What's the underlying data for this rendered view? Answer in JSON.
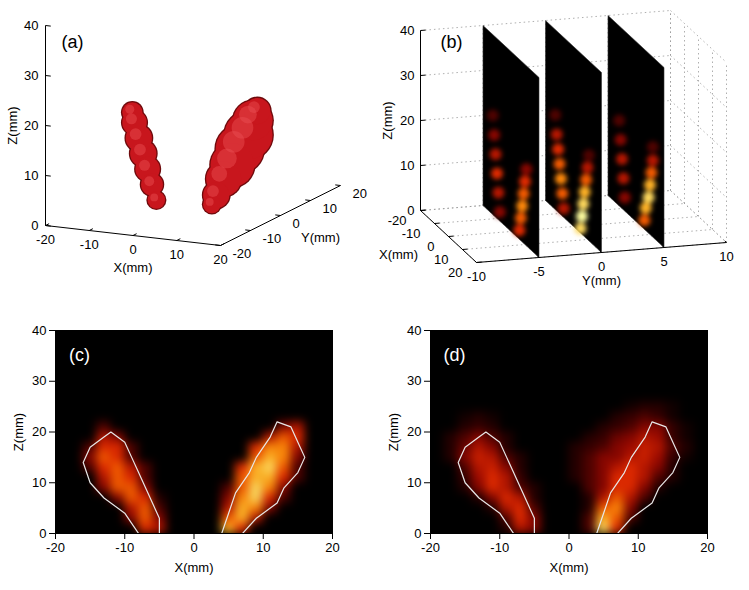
{
  "chart_data": [
    {
      "type": "isosurface3d",
      "title": "(a)",
      "x_label": "X(mm)",
      "y_label": "Y(mm)",
      "z_label": "Z(mm)",
      "xlim": [
        -20,
        20
      ],
      "ylim": [
        -20,
        20
      ],
      "zlim": [
        0,
        40
      ],
      "xticks": [
        -20,
        -10,
        0,
        10,
        20
      ],
      "yticks": [
        -20,
        -10,
        0,
        10,
        20
      ],
      "zticks": [
        0,
        10,
        20,
        30,
        40
      ],
      "color": "#c8161d",
      "bodies": [
        {
          "x": [
            -7,
            -8,
            -9,
            -10,
            -11,
            -12,
            -12.5
          ],
          "y": [
            -2,
            -2,
            -2,
            -2,
            -2,
            -2,
            -2
          ],
          "z": [
            1,
            4,
            7,
            10,
            13,
            16,
            18
          ],
          "radius": [
            2,
            2.5,
            2.8,
            3,
            3,
            2.8,
            2.3
          ]
        },
        {
          "x": [
            5,
            6,
            7,
            9,
            10,
            12,
            13,
            14
          ],
          "y": [
            -1,
            -1,
            0,
            0,
            1,
            1,
            1,
            1
          ],
          "z": [
            1,
            3,
            6,
            9,
            12,
            15,
            18,
            20
          ],
          "radius": [
            2,
            3,
            4,
            5,
            5.5,
            5.5,
            4.5,
            3
          ]
        }
      ]
    },
    {
      "type": "slices3d",
      "title": "(b)",
      "x_label": "X(mm)",
      "y_label": "Y(mm)",
      "z_label": "Z(mm)",
      "xlim": [
        -20,
        20
      ],
      "ylim": [
        -10,
        10
      ],
      "zlim": [
        0,
        40
      ],
      "xticks": [
        -20,
        -10,
        0,
        10,
        20
      ],
      "yticks": [
        -10,
        -5,
        0,
        5,
        10
      ],
      "zticks": [
        0,
        10,
        20,
        30,
        40
      ],
      "grid": true,
      "value_range": [
        0,
        1
      ],
      "slices": [
        {
          "y": -5,
          "x": [
            -8,
            -9,
            -10,
            -11,
            -12,
            -13,
            6,
            7,
            8,
            9,
            10,
            11
          ],
          "z": [
            2,
            6,
            10,
            14,
            18,
            22,
            2,
            5,
            8,
            11,
            14,
            17
          ],
          "values": [
            0.3,
            0.4,
            0.5,
            0.4,
            0.3,
            0.2,
            0.5,
            0.6,
            0.7,
            0.6,
            0.5,
            0.3
          ]
        },
        {
          "y": 0,
          "x": [
            -7,
            -8,
            -9,
            -10,
            -11,
            -12,
            -13,
            5,
            6,
            7,
            8,
            9,
            10,
            11
          ],
          "z": [
            2,
            5,
            8,
            11,
            14,
            17,
            21,
            1,
            4,
            7,
            10,
            13,
            16,
            19
          ],
          "values": [
            0.4,
            0.6,
            0.7,
            0.6,
            0.5,
            0.4,
            0.2,
            0.9,
            1,
            0.9,
            0.8,
            0.6,
            0.4,
            0.2
          ]
        },
        {
          "y": 5,
          "x": [
            -8,
            -9,
            -10,
            -11,
            -12,
            6,
            7,
            9,
            10,
            11,
            12,
            12
          ],
          "z": [
            3,
            7,
            11,
            15,
            19,
            2,
            5,
            8,
            11,
            14,
            17,
            20
          ],
          "values": [
            0.3,
            0.4,
            0.4,
            0.3,
            0.2,
            0.6,
            0.8,
            0.9,
            0.8,
            0.6,
            0.4,
            0.2
          ]
        }
      ]
    },
    {
      "type": "heatmap",
      "title": "(c)",
      "x_label": "X(mm)",
      "y_label": "Z(mm)",
      "xlim": [
        -20,
        20
      ],
      "ylim": [
        0,
        40
      ],
      "xticks": [
        -20,
        -10,
        0,
        10,
        20
      ],
      "yticks": [
        0,
        10,
        20,
        30,
        40
      ],
      "value_range": [
        0,
        1
      ],
      "x_edges": [
        -20,
        -18,
        -16,
        -14,
        -12,
        -10,
        -8,
        -6,
        -4,
        -2,
        0,
        2,
        4,
        6,
        8,
        10,
        12,
        14,
        16,
        18,
        20
      ],
      "y_edges": [
        0,
        2,
        4,
        6,
        8,
        10,
        12,
        14,
        16,
        18,
        20,
        22
      ],
      "cells": [
        [
          0,
          0,
          0,
          0,
          0,
          0,
          0.5,
          0.4,
          0,
          0,
          0,
          0,
          0.8,
          0.5,
          0,
          0,
          0,
          0,
          0,
          0
        ],
        [
          0,
          0,
          0,
          0,
          0,
          0.3,
          0.6,
          0.3,
          0,
          0,
          0,
          0,
          0.6,
          0.8,
          0.4,
          0,
          0,
          0,
          0,
          0
        ],
        [
          0,
          0,
          0,
          0,
          0,
          0.4,
          0.6,
          0.2,
          0,
          0,
          0,
          0,
          0.4,
          0.8,
          0.7,
          0.3,
          0,
          0,
          0,
          0
        ],
        [
          0,
          0,
          0,
          0,
          0.3,
          0.6,
          0.5,
          0.1,
          0,
          0,
          0,
          0,
          0.3,
          0.7,
          0.9,
          0.5,
          0.2,
          0,
          0,
          0
        ],
        [
          0,
          0,
          0,
          0.3,
          0.6,
          0.6,
          0.3,
          0,
          0,
          0,
          0,
          0,
          0.2,
          0.6,
          0.9,
          0.7,
          0.3,
          0,
          0,
          0
        ],
        [
          0,
          0,
          0,
          0.4,
          0.6,
          0.5,
          0.2,
          0,
          0,
          0,
          0,
          0,
          0,
          0.6,
          0.8,
          0.8,
          0.5,
          0.2,
          0,
          0
        ],
        [
          0,
          0,
          0.2,
          0.5,
          0.6,
          0.4,
          0.2,
          0,
          0,
          0,
          0,
          0,
          0,
          0.5,
          0.8,
          0.9,
          0.6,
          0.2,
          0,
          0
        ],
        [
          0,
          0,
          0.3,
          0.6,
          0.5,
          0.2,
          0,
          0,
          0,
          0,
          0,
          0,
          0,
          0,
          0.6,
          0.8,
          0.7,
          0.3,
          0,
          0
        ],
        [
          0,
          0,
          0.2,
          0.5,
          0.5,
          0.2,
          0,
          0,
          0,
          0,
          0,
          0,
          0,
          0,
          0.5,
          0.7,
          0.7,
          0.4,
          0,
          0
        ],
        [
          0,
          0,
          0,
          0.4,
          0.3,
          0,
          0,
          0,
          0,
          0,
          0,
          0,
          0,
          0,
          0,
          0.4,
          0.6,
          0.5,
          0,
          0
        ],
        [
          0,
          0,
          0,
          0.2,
          0,
          0,
          0,
          0,
          0,
          0,
          0,
          0,
          0,
          0,
          0,
          0,
          0.3,
          0.4,
          0,
          0
        ]
      ],
      "contours": [
        {
          "x": [
            -5,
            -5,
            -6,
            -7,
            -8,
            -9,
            -10,
            -12,
            -13,
            -15,
            -16,
            -15,
            -13,
            -10,
            -9,
            -8
          ],
          "y": [
            0,
            3,
            6,
            9,
            12,
            15,
            18,
            20,
            19,
            17,
            14,
            10,
            7,
            4,
            2,
            0
          ]
        },
        {
          "x": [
            4,
            7,
            9,
            12,
            13,
            15,
            16,
            15,
            14,
            12,
            11,
            9,
            8,
            6,
            5
          ],
          "y": [
            0,
            0,
            3,
            6,
            9,
            12,
            15,
            18,
            21,
            22,
            19,
            15,
            12,
            8,
            4
          ]
        }
      ]
    },
    {
      "type": "heatmap",
      "title": "(d)",
      "x_label": "X(mm)",
      "y_label": "Z(mm)",
      "xlim": [
        -20,
        20
      ],
      "ylim": [
        0,
        40
      ],
      "xticks": [
        -20,
        -10,
        0,
        10,
        20
      ],
      "yticks": [
        0,
        10,
        20,
        30,
        40
      ],
      "value_range": [
        0,
        1
      ],
      "x_edges": [
        -20,
        -18,
        -16,
        -14,
        -12,
        -10,
        -8,
        -6,
        -4,
        -2,
        0,
        2,
        4,
        6,
        8,
        10,
        12,
        14,
        16,
        18,
        20
      ],
      "y_edges": [
        0,
        2,
        4,
        6,
        8,
        10,
        12,
        14,
        16,
        18,
        20,
        22,
        24,
        26
      ],
      "cells": [
        [
          0,
          0,
          0,
          0,
          0,
          0.1,
          0.4,
          0.3,
          0,
          0,
          0,
          0.2,
          0.9,
          0.5,
          0,
          0,
          0,
          0,
          0,
          0
        ],
        [
          0,
          0,
          0,
          0,
          0,
          0.2,
          0.5,
          0.3,
          0,
          0,
          0,
          0.2,
          0.8,
          0.6,
          0.2,
          0,
          0,
          0,
          0,
          0
        ],
        [
          0,
          0,
          0,
          0,
          0.1,
          0.4,
          0.5,
          0.2,
          0,
          0,
          0,
          0.1,
          0.6,
          0.7,
          0.3,
          0,
          0,
          0,
          0,
          0
        ],
        [
          0,
          0,
          0,
          0.1,
          0.3,
          0.5,
          0.4,
          0.1,
          0,
          0,
          0,
          0.1,
          0.4,
          0.6,
          0.4,
          0.2,
          0,
          0,
          0,
          0
        ],
        [
          0,
          0,
          0.1,
          0.3,
          0.5,
          0.4,
          0.2,
          0.1,
          0,
          0,
          0,
          0.2,
          0.3,
          0.5,
          0.5,
          0.3,
          0.1,
          0,
          0,
          0
        ],
        [
          0,
          0,
          0.15,
          0.35,
          0.5,
          0.4,
          0.15,
          0,
          0,
          0,
          0.1,
          0.2,
          0.3,
          0.5,
          0.5,
          0.4,
          0.2,
          0.1,
          0,
          0
        ],
        [
          0,
          0,
          0.2,
          0.4,
          0.45,
          0.3,
          0.1,
          0,
          0,
          0,
          0.1,
          0.2,
          0.3,
          0.4,
          0.5,
          0.4,
          0.3,
          0.1,
          0,
          0
        ],
        [
          0,
          0.1,
          0.3,
          0.45,
          0.4,
          0.2,
          0.1,
          0,
          0,
          0,
          0.1,
          0.2,
          0.3,
          0.3,
          0.4,
          0.45,
          0.35,
          0.15,
          0.05,
          0
        ],
        [
          0,
          0.1,
          0.25,
          0.4,
          0.3,
          0.1,
          0,
          0,
          0,
          0,
          0.1,
          0.15,
          0.2,
          0.3,
          0.35,
          0.45,
          0.4,
          0.2,
          0.1,
          0
        ],
        [
          0,
          0.1,
          0.2,
          0.3,
          0.2,
          0.1,
          0,
          0,
          0,
          0,
          0,
          0.1,
          0.15,
          0.25,
          0.3,
          0.4,
          0.35,
          0.15,
          0.05,
          0
        ],
        [
          0,
          0,
          0.1,
          0.15,
          0.1,
          0,
          0,
          0,
          0,
          0,
          0,
          0,
          0.1,
          0.15,
          0.2,
          0.3,
          0.3,
          0.15,
          0.05,
          0
        ],
        [
          0,
          0,
          0.05,
          0.1,
          0.05,
          0,
          0,
          0,
          0,
          0,
          0,
          0,
          0,
          0.1,
          0.15,
          0.2,
          0.15,
          0.05,
          0,
          0
        ],
        [
          0,
          0,
          0,
          0,
          0,
          0,
          0,
          0,
          0,
          0,
          0,
          0,
          0,
          0,
          0.05,
          0.1,
          0.1,
          0.05,
          0,
          0
        ]
      ],
      "contours": [
        {
          "x": [
            -5,
            -5,
            -6,
            -7,
            -8,
            -9,
            -10,
            -12,
            -13,
            -15,
            -16,
            -15,
            -13,
            -10,
            -9,
            -8
          ],
          "y": [
            0,
            3,
            6,
            9,
            12,
            15,
            18,
            20,
            19,
            17,
            14,
            10,
            7,
            4,
            2,
            0
          ]
        },
        {
          "x": [
            4,
            7,
            9,
            12,
            13,
            15,
            16,
            15,
            14,
            12,
            11,
            9,
            8,
            6,
            5
          ],
          "y": [
            0,
            0,
            3,
            6,
            9,
            12,
            15,
            18,
            21,
            22,
            19,
            15,
            12,
            8,
            4
          ]
        }
      ]
    }
  ]
}
